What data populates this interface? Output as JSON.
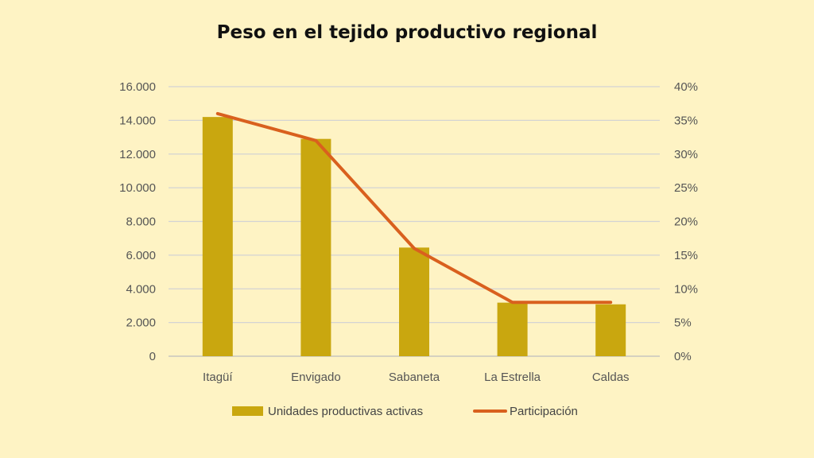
{
  "chart_data": {
    "type": "bar",
    "title": "Peso en el tejido productivo regional",
    "categories": [
      "Itagüí",
      "Envigado",
      "Sabaneta",
      "La Estrella",
      "Caldas"
    ],
    "series": [
      {
        "name": "Unidades productivas activas",
        "type": "bar",
        "axis": "left",
        "color": "#c9a70f",
        "values": [
          14200,
          12900,
          6450,
          3180,
          3080
        ]
      },
      {
        "name": "Participación",
        "type": "line",
        "axis": "right",
        "color": "#d9601e",
        "values": [
          0.36,
          0.32,
          0.16,
          0.08,
          0.08
        ]
      }
    ],
    "y_left": {
      "min": 0,
      "max": 16000,
      "ticks": [
        0,
        2000,
        4000,
        6000,
        8000,
        10000,
        12000,
        14000,
        16000
      ],
      "tick_labels": [
        "0",
        "2.000",
        "4.000",
        "6.000",
        "8.000",
        "10.000",
        "12.000",
        "14.000",
        "16.000"
      ]
    },
    "y_right": {
      "min": 0,
      "max": 0.4,
      "ticks": [
        0,
        0.05,
        0.1,
        0.15,
        0.2,
        0.25,
        0.3,
        0.35,
        0.4
      ],
      "tick_labels": [
        "0%",
        "5%",
        "10%",
        "15%",
        "20%",
        "25%",
        "30%",
        "35%",
        "40%"
      ]
    },
    "grid": true,
    "legend_position": "bottom"
  }
}
